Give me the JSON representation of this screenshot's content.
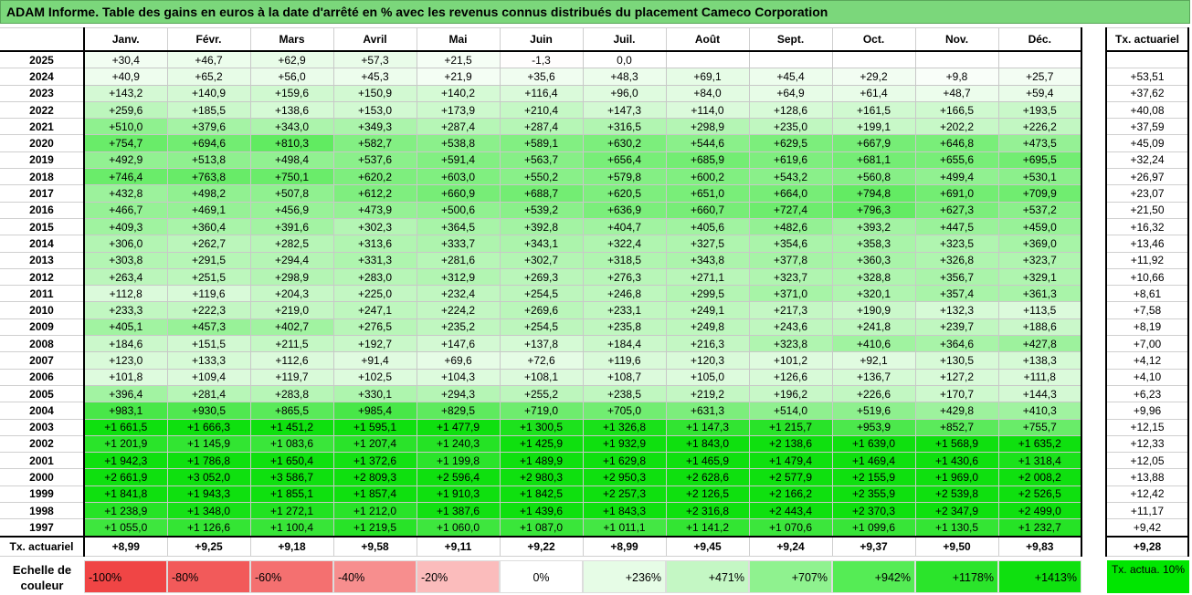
{
  "title": "ADAM Informe. Table des gains en euros à la date d'arrêté en % avec les revenus connus distribués du placement Cameco Corporation",
  "months": [
    "Janv.",
    "Févr.",
    "Mars",
    "Avril",
    "Mai",
    "Juin",
    "Juil.",
    "Août",
    "Sept.",
    "Oct.",
    "Nov.",
    "Déc."
  ],
  "side_header": "Tx. actuariel",
  "rows": [
    {
      "year": "2025",
      "values": [
        "+30,4",
        "+46,7",
        "+62,9",
        "+57,3",
        "+21,5",
        "-1,3",
        "0,0",
        "",
        "",
        "",
        "",
        ""
      ],
      "tx": ""
    },
    {
      "year": "2024",
      "values": [
        "+40,9",
        "+65,2",
        "+56,0",
        "+45,3",
        "+21,9",
        "+35,6",
        "+48,3",
        "+69,1",
        "+45,4",
        "+29,2",
        "+9,8",
        "+25,7"
      ],
      "tx": "+53,51"
    },
    {
      "year": "2023",
      "values": [
        "+143,2",
        "+140,9",
        "+159,6",
        "+150,9",
        "+140,2",
        "+116,4",
        "+96,0",
        "+84,0",
        "+64,9",
        "+61,4",
        "+48,7",
        "+59,4"
      ],
      "tx": "+37,62"
    },
    {
      "year": "2022",
      "values": [
        "+259,6",
        "+185,5",
        "+138,6",
        "+153,0",
        "+173,9",
        "+210,4",
        "+147,3",
        "+114,0",
        "+128,6",
        "+161,5",
        "+166,5",
        "+193,5"
      ],
      "tx": "+40,08"
    },
    {
      "year": "2021",
      "values": [
        "+510,0",
        "+379,6",
        "+343,0",
        "+349,3",
        "+287,4",
        "+287,4",
        "+316,5",
        "+298,9",
        "+235,0",
        "+199,1",
        "+202,2",
        "+226,2"
      ],
      "tx": "+37,59"
    },
    {
      "year": "2020",
      "values": [
        "+754,7",
        "+694,6",
        "+810,3",
        "+582,7",
        "+538,8",
        "+589,1",
        "+630,2",
        "+544,6",
        "+629,5",
        "+667,9",
        "+646,8",
        "+473,5"
      ],
      "tx": "+45,09"
    },
    {
      "year": "2019",
      "values": [
        "+492,9",
        "+513,8",
        "+498,4",
        "+537,6",
        "+591,4",
        "+563,7",
        "+656,4",
        "+685,9",
        "+619,6",
        "+681,1",
        "+655,6",
        "+695,5"
      ],
      "tx": "+32,24"
    },
    {
      "year": "2018",
      "values": [
        "+746,4",
        "+763,8",
        "+750,1",
        "+620,2",
        "+603,0",
        "+550,2",
        "+579,8",
        "+600,2",
        "+543,2",
        "+560,8",
        "+499,4",
        "+530,1"
      ],
      "tx": "+26,97"
    },
    {
      "year": "2017",
      "values": [
        "+432,8",
        "+498,2",
        "+507,8",
        "+612,2",
        "+660,9",
        "+688,7",
        "+620,5",
        "+651,0",
        "+664,0",
        "+794,8",
        "+691,0",
        "+709,9"
      ],
      "tx": "+23,07"
    },
    {
      "year": "2016",
      "values": [
        "+466,7",
        "+469,1",
        "+456,9",
        "+473,9",
        "+500,6",
        "+539,2",
        "+636,9",
        "+660,7",
        "+727,4",
        "+796,3",
        "+627,3",
        "+537,2"
      ],
      "tx": "+21,50"
    },
    {
      "year": "2015",
      "values": [
        "+409,3",
        "+360,4",
        "+391,6",
        "+302,3",
        "+364,5",
        "+392,8",
        "+404,7",
        "+405,6",
        "+482,6",
        "+393,2",
        "+447,5",
        "+459,0"
      ],
      "tx": "+16,32"
    },
    {
      "year": "2014",
      "values": [
        "+306,0",
        "+262,7",
        "+282,5",
        "+313,6",
        "+333,7",
        "+343,1",
        "+322,4",
        "+327,5",
        "+354,6",
        "+358,3",
        "+323,5",
        "+369,0"
      ],
      "tx": "+13,46"
    },
    {
      "year": "2013",
      "values": [
        "+303,8",
        "+291,5",
        "+294,4",
        "+331,3",
        "+281,6",
        "+302,7",
        "+318,5",
        "+343,8",
        "+377,8",
        "+360,3",
        "+326,8",
        "+323,7"
      ],
      "tx": "+11,92"
    },
    {
      "year": "2012",
      "values": [
        "+263,4",
        "+251,5",
        "+298,9",
        "+283,0",
        "+312,9",
        "+269,3",
        "+276,3",
        "+271,1",
        "+323,7",
        "+328,8",
        "+356,7",
        "+329,1"
      ],
      "tx": "+10,66"
    },
    {
      "year": "2011",
      "values": [
        "+112,8",
        "+119,6",
        "+204,3",
        "+225,0",
        "+232,4",
        "+254,5",
        "+246,8",
        "+299,5",
        "+371,0",
        "+320,1",
        "+357,4",
        "+361,3"
      ],
      "tx": "+8,61"
    },
    {
      "year": "2010",
      "values": [
        "+233,3",
        "+222,3",
        "+219,0",
        "+247,1",
        "+224,2",
        "+269,6",
        "+233,1",
        "+249,1",
        "+217,3",
        "+190,9",
        "+132,3",
        "+113,5"
      ],
      "tx": "+7,58"
    },
    {
      "year": "2009",
      "values": [
        "+405,1",
        "+457,3",
        "+402,7",
        "+276,5",
        "+235,2",
        "+254,5",
        "+235,8",
        "+249,8",
        "+243,6",
        "+241,8",
        "+239,7",
        "+188,6"
      ],
      "tx": "+8,19"
    },
    {
      "year": "2008",
      "values": [
        "+184,6",
        "+151,5",
        "+211,5",
        "+192,7",
        "+147,6",
        "+137,8",
        "+184,4",
        "+216,3",
        "+323,8",
        "+410,6",
        "+364,6",
        "+427,8"
      ],
      "tx": "+7,00"
    },
    {
      "year": "2007",
      "values": [
        "+123,0",
        "+133,3",
        "+112,6",
        "+91,4",
        "+69,6",
        "+72,6",
        "+119,6",
        "+120,3",
        "+101,2",
        "+92,1",
        "+130,5",
        "+138,3"
      ],
      "tx": "+4,12"
    },
    {
      "year": "2006",
      "values": [
        "+101,8",
        "+109,4",
        "+119,7",
        "+102,5",
        "+104,3",
        "+108,1",
        "+108,7",
        "+105,0",
        "+126,6",
        "+136,7",
        "+127,2",
        "+111,8"
      ],
      "tx": "+4,10"
    },
    {
      "year": "2005",
      "values": [
        "+396,4",
        "+281,4",
        "+283,8",
        "+330,1",
        "+294,3",
        "+255,2",
        "+238,5",
        "+219,2",
        "+196,2",
        "+226,6",
        "+170,7",
        "+144,3"
      ],
      "tx": "+6,23"
    },
    {
      "year": "2004",
      "values": [
        "+983,1",
        "+930,5",
        "+865,5",
        "+985,4",
        "+829,5",
        "+719,0",
        "+705,0",
        "+631,3",
        "+514,0",
        "+519,6",
        "+429,8",
        "+410,3"
      ],
      "tx": "+9,96"
    },
    {
      "year": "2003",
      "values": [
        "+1 661,5",
        "+1 666,3",
        "+1 451,2",
        "+1 595,1",
        "+1 477,9",
        "+1 300,5",
        "+1 326,8",
        "+1 147,3",
        "+1 215,7",
        "+953,9",
        "+852,7",
        "+755,7"
      ],
      "tx": "+12,15"
    },
    {
      "year": "2002",
      "values": [
        "+1 201,9",
        "+1 145,9",
        "+1 083,6",
        "+1 207,4",
        "+1 240,3",
        "+1 425,9",
        "+1 932,9",
        "+1 843,0",
        "+2 138,6",
        "+1 639,0",
        "+1 568,9",
        "+1 635,2"
      ],
      "tx": "+12,33"
    },
    {
      "year": "2001",
      "values": [
        "+1 942,3",
        "+1 786,8",
        "+1 650,4",
        "+1 372,6",
        "+1 199,8",
        "+1 489,9",
        "+1 629,8",
        "+1 465,9",
        "+1 479,4",
        "+1 469,4",
        "+1 430,6",
        "+1 318,4"
      ],
      "tx": "+12,05"
    },
    {
      "year": "2000",
      "values": [
        "+2 661,9",
        "+3 052,0",
        "+3 586,7",
        "+2 809,3",
        "+2 596,4",
        "+2 980,3",
        "+2 950,3",
        "+2 628,6",
        "+2 577,9",
        "+2 155,9",
        "+1 969,0",
        "+2 008,2"
      ],
      "tx": "+13,88"
    },
    {
      "year": "1999",
      "values": [
        "+1 841,8",
        "+1 943,3",
        "+1 855,1",
        "+1 857,4",
        "+1 910,3",
        "+1 842,5",
        "+2 257,3",
        "+2 126,5",
        "+2 166,2",
        "+2 355,9",
        "+2 539,8",
        "+2 526,5"
      ],
      "tx": "+12,42"
    },
    {
      "year": "1998",
      "values": [
        "+1 238,9",
        "+1 348,0",
        "+1 272,1",
        "+1 212,0",
        "+1 387,6",
        "+1 439,6",
        "+1 843,3",
        "+2 316,8",
        "+2 443,4",
        "+2 370,3",
        "+2 347,9",
        "+2 499,0"
      ],
      "tx": "+11,17"
    },
    {
      "year": "1997",
      "values": [
        "+1 055,0",
        "+1 126,6",
        "+1 100,4",
        "+1 219,5",
        "+1 060,0",
        "+1 087,0",
        "+1 011,1",
        "+1 141,2",
        "+1 070,6",
        "+1 099,6",
        "+1 130,5",
        "+1 232,7"
      ],
      "tx": "+9,42"
    }
  ],
  "footer": {
    "label": "Tx. actuariel",
    "values": [
      "+8,99",
      "+9,25",
      "+9,18",
      "+9,58",
      "+9,11",
      "+9,22",
      "+8,99",
      "+9,45",
      "+9,24",
      "+9,37",
      "+9,50",
      "+9,83"
    ],
    "tx": "+9,28"
  },
  "legend": {
    "label": "Echelle de couleur",
    "scale": [
      {
        "label": "-100%",
        "color": "#f04545",
        "kind": "neg"
      },
      {
        "label": "-80%",
        "color": "#f25a5a",
        "kind": "neg"
      },
      {
        "label": "-60%",
        "color": "#f47070",
        "kind": "neg"
      },
      {
        "label": "-40%",
        "color": "#f78e8e",
        "kind": "neg"
      },
      {
        "label": "-20%",
        "color": "#fbbcbc",
        "kind": "neg"
      },
      {
        "label": "0%",
        "color": "#ffffff",
        "kind": "zero"
      },
      {
        "label": "+236%",
        "color": "#e6fce6",
        "kind": "pos"
      },
      {
        "label": "+471%",
        "color": "#c4f7c4",
        "kind": "pos"
      },
      {
        "label": "+707%",
        "color": "#8ff28f",
        "kind": "pos"
      },
      {
        "label": "+942%",
        "color": "#55ec55",
        "kind": "pos"
      },
      {
        "label": "+1178%",
        "color": "#2be42b",
        "kind": "pos"
      },
      {
        "label": "+1413%",
        "color": "#0fe00f",
        "kind": "pos"
      }
    ],
    "side_label": "Tx. actua. 10%",
    "side_color": "#00e600"
  }
}
